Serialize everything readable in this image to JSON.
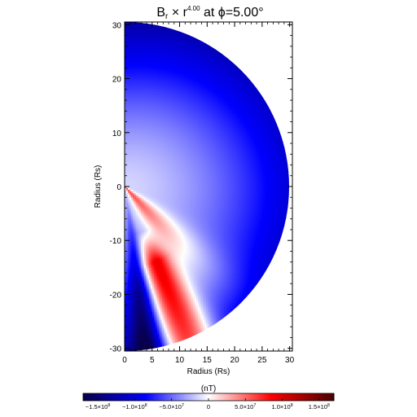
{
  "chart_data": {
    "type": "heatmap",
    "title_main": "B",
    "title_sub": "r",
    "title_mid": " × r",
    "title_sup": "4.00",
    "title_end": " at ϕ=5.00°",
    "xlabel": "Radius (Rs)",
    "ylabel": "Radius (Rs)",
    "xlim": [
      0,
      30.5
    ],
    "ylim": [
      -30.5,
      30.5
    ],
    "xticks": [
      "0",
      "5",
      "10",
      "15",
      "20",
      "25",
      "30"
    ],
    "xtick_values": [
      0,
      5,
      10,
      15,
      20,
      25,
      30
    ],
    "yticks": [
      "30",
      "20",
      "10",
      "0",
      "-10",
      "-20",
      "-30"
    ],
    "ytick_values": [
      30,
      20,
      10,
      0,
      -10,
      -20,
      -30
    ],
    "domain": "half-disk x ≥ 0, radius 30.5 Rs",
    "field_description": "negative (blue) over most of the half-disk, strongest near the outer boundary; a positive (red) wedge in the lower part at radius ~10-28 Rs",
    "colorbar": {
      "label": "(nT)",
      "range": [
        -170000000.0,
        170000000.0
      ],
      "tick_values": [
        -150000000.0,
        -100000000.0,
        -50000000.0,
        0,
        50000000.0,
        100000000.0,
        150000000.0
      ],
      "tick_labels": [
        {
          "mant": "−1.5×10",
          "exp": "8"
        },
        {
          "mant": "−1.0×10",
          "exp": "8"
        },
        {
          "mant": "−5.0×10",
          "exp": "7"
        },
        {
          "mant": "0",
          "exp": ""
        },
        {
          "mant": "5.0×10",
          "exp": "7"
        },
        {
          "mant": "1.0×10",
          "exp": "8"
        },
        {
          "mant": "1.5×10",
          "exp": "8"
        }
      ],
      "colors": [
        "#08004a",
        "#0000ff",
        "#ffffff",
        "#ff0000",
        "#4a0000"
      ]
    }
  }
}
